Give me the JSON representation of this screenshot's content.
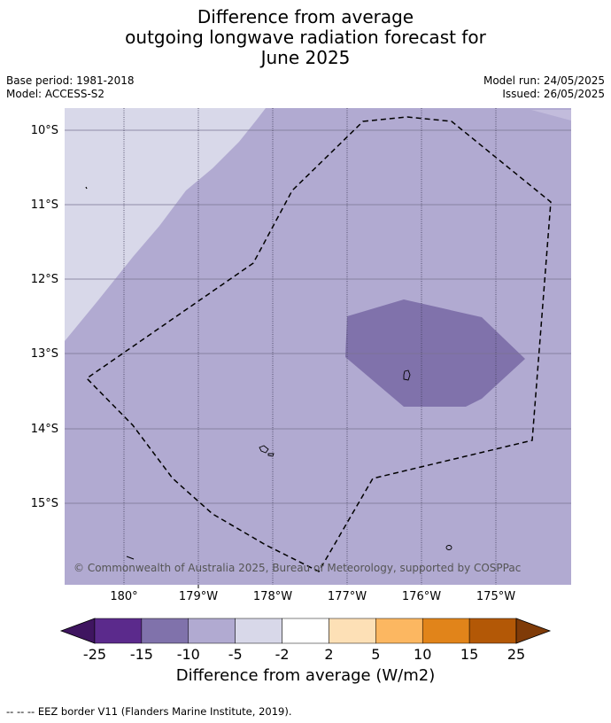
{
  "title": {
    "line1": "Difference from average",
    "line2": "outgoing longwave radiation forecast for",
    "line3": "June 2025"
  },
  "meta": {
    "base_period": "Base period: 1981-2018",
    "model": "Model: ACCESS-S2",
    "model_run": "Model run: 24/05/2025",
    "issued": "Issued: 26/05/2025"
  },
  "map": {
    "lat_labels": [
      "10°S",
      "11°S",
      "12°S",
      "13°S",
      "14°S",
      "15°S"
    ],
    "lon_labels": [
      "180°",
      "179°W",
      "178°W",
      "177°W",
      "176°W",
      "175°W"
    ],
    "copyright": "© Commonwealth of Australia 2025, Bureau of Meteorology, supported by COSPPac"
  },
  "colorbar": {
    "ticks": [
      "-25",
      "-15",
      "-10",
      "-5",
      "-2",
      "2",
      "5",
      "10",
      "15",
      "25"
    ],
    "colors": [
      "#3f1560",
      "#5b2a8c",
      "#8072ab",
      "#b1aad1",
      "#d8d8e9",
      "#ffffff",
      "#fde0b6",
      "#fcb761",
      "#e1841a",
      "#b35806",
      "#7f3b08"
    ],
    "label": "Difference from average (W/m2)"
  },
  "footer": "--  --  -- EEZ border V11 (Flanders Marine Institute, 2019)."
}
